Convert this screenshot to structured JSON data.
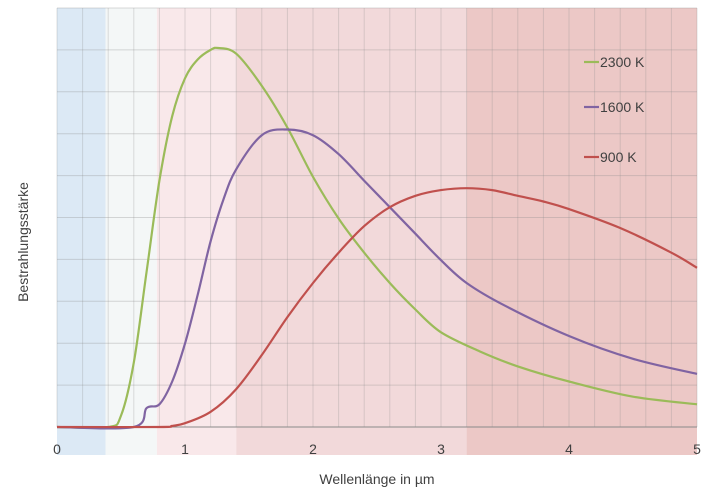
{
  "chart_data": {
    "type": "line",
    "title": "",
    "xlabel": "Wellenlänge in µm",
    "ylabel": "Bestrahlungsstärke",
    "xlim": [
      0,
      5
    ],
    "ylim": [
      0,
      1
    ],
    "x_ticks": [
      "0",
      "1",
      "2",
      "3",
      "4",
      "5"
    ],
    "grid": true,
    "legend": "top-right",
    "spectral_bands": [
      {
        "from": 0.0,
        "to": 0.38,
        "color": "#dce9f5"
      },
      {
        "from": 0.38,
        "to": 0.78,
        "color": "#f4f7f7"
      },
      {
        "from": 0.78,
        "to": 1.4,
        "color": "#f9e8ea"
      },
      {
        "from": 1.4,
        "to": 3.2,
        "color": "#f2d9da"
      },
      {
        "from": 3.2,
        "to": 5.0,
        "color": "#ecc8c6"
      }
    ],
    "series": [
      {
        "name": "2300 K",
        "color": "#9bbb59",
        "x": [
          0.0,
          0.4,
          0.5,
          0.6,
          0.7,
          0.8,
          0.9,
          1.0,
          1.1,
          1.2,
          1.26,
          1.4,
          1.6,
          1.8,
          2.0,
          2.2,
          2.4,
          2.6,
          2.8,
          3.0,
          3.3,
          3.6,
          4.0,
          4.5,
          5.0
        ],
        "y": [
          0.0,
          0.0,
          0.03,
          0.17,
          0.41,
          0.65,
          0.82,
          0.92,
          0.97,
          0.995,
          1.0,
          0.985,
          0.9,
          0.79,
          0.66,
          0.55,
          0.46,
          0.38,
          0.31,
          0.25,
          0.2,
          0.16,
          0.12,
          0.08,
          0.06
        ]
      },
      {
        "name": "1600 K",
        "color": "#8064a2",
        "x": [
          0.0,
          0.6,
          0.7,
          0.8,
          0.9,
          1.0,
          1.1,
          1.2,
          1.3,
          1.4,
          1.6,
          1.8,
          2.0,
          2.2,
          2.4,
          2.6,
          2.8,
          3.0,
          3.2,
          3.5,
          4.0,
          4.5,
          5.0
        ],
        "y": [
          0.0,
          0.0,
          0.05,
          0.06,
          0.12,
          0.22,
          0.35,
          0.49,
          0.6,
          0.68,
          0.77,
          0.785,
          0.77,
          0.72,
          0.65,
          0.58,
          0.51,
          0.44,
          0.38,
          0.32,
          0.24,
          0.18,
          0.14
        ]
      },
      {
        "name": "900 K",
        "color": "#c0504d",
        "x": [
          0.0,
          0.8,
          0.9,
          1.0,
          1.2,
          1.4,
          1.6,
          1.8,
          2.0,
          2.2,
          2.4,
          2.6,
          2.8,
          3.0,
          3.2,
          3.4,
          3.6,
          3.8,
          4.0,
          4.4,
          4.8,
          5.0
        ],
        "y": [
          0.0,
          0.0,
          0.003,
          0.01,
          0.04,
          0.1,
          0.19,
          0.29,
          0.38,
          0.46,
          0.53,
          0.58,
          0.61,
          0.625,
          0.63,
          0.625,
          0.61,
          0.595,
          0.575,
          0.525,
          0.46,
          0.42
        ]
      }
    ]
  }
}
